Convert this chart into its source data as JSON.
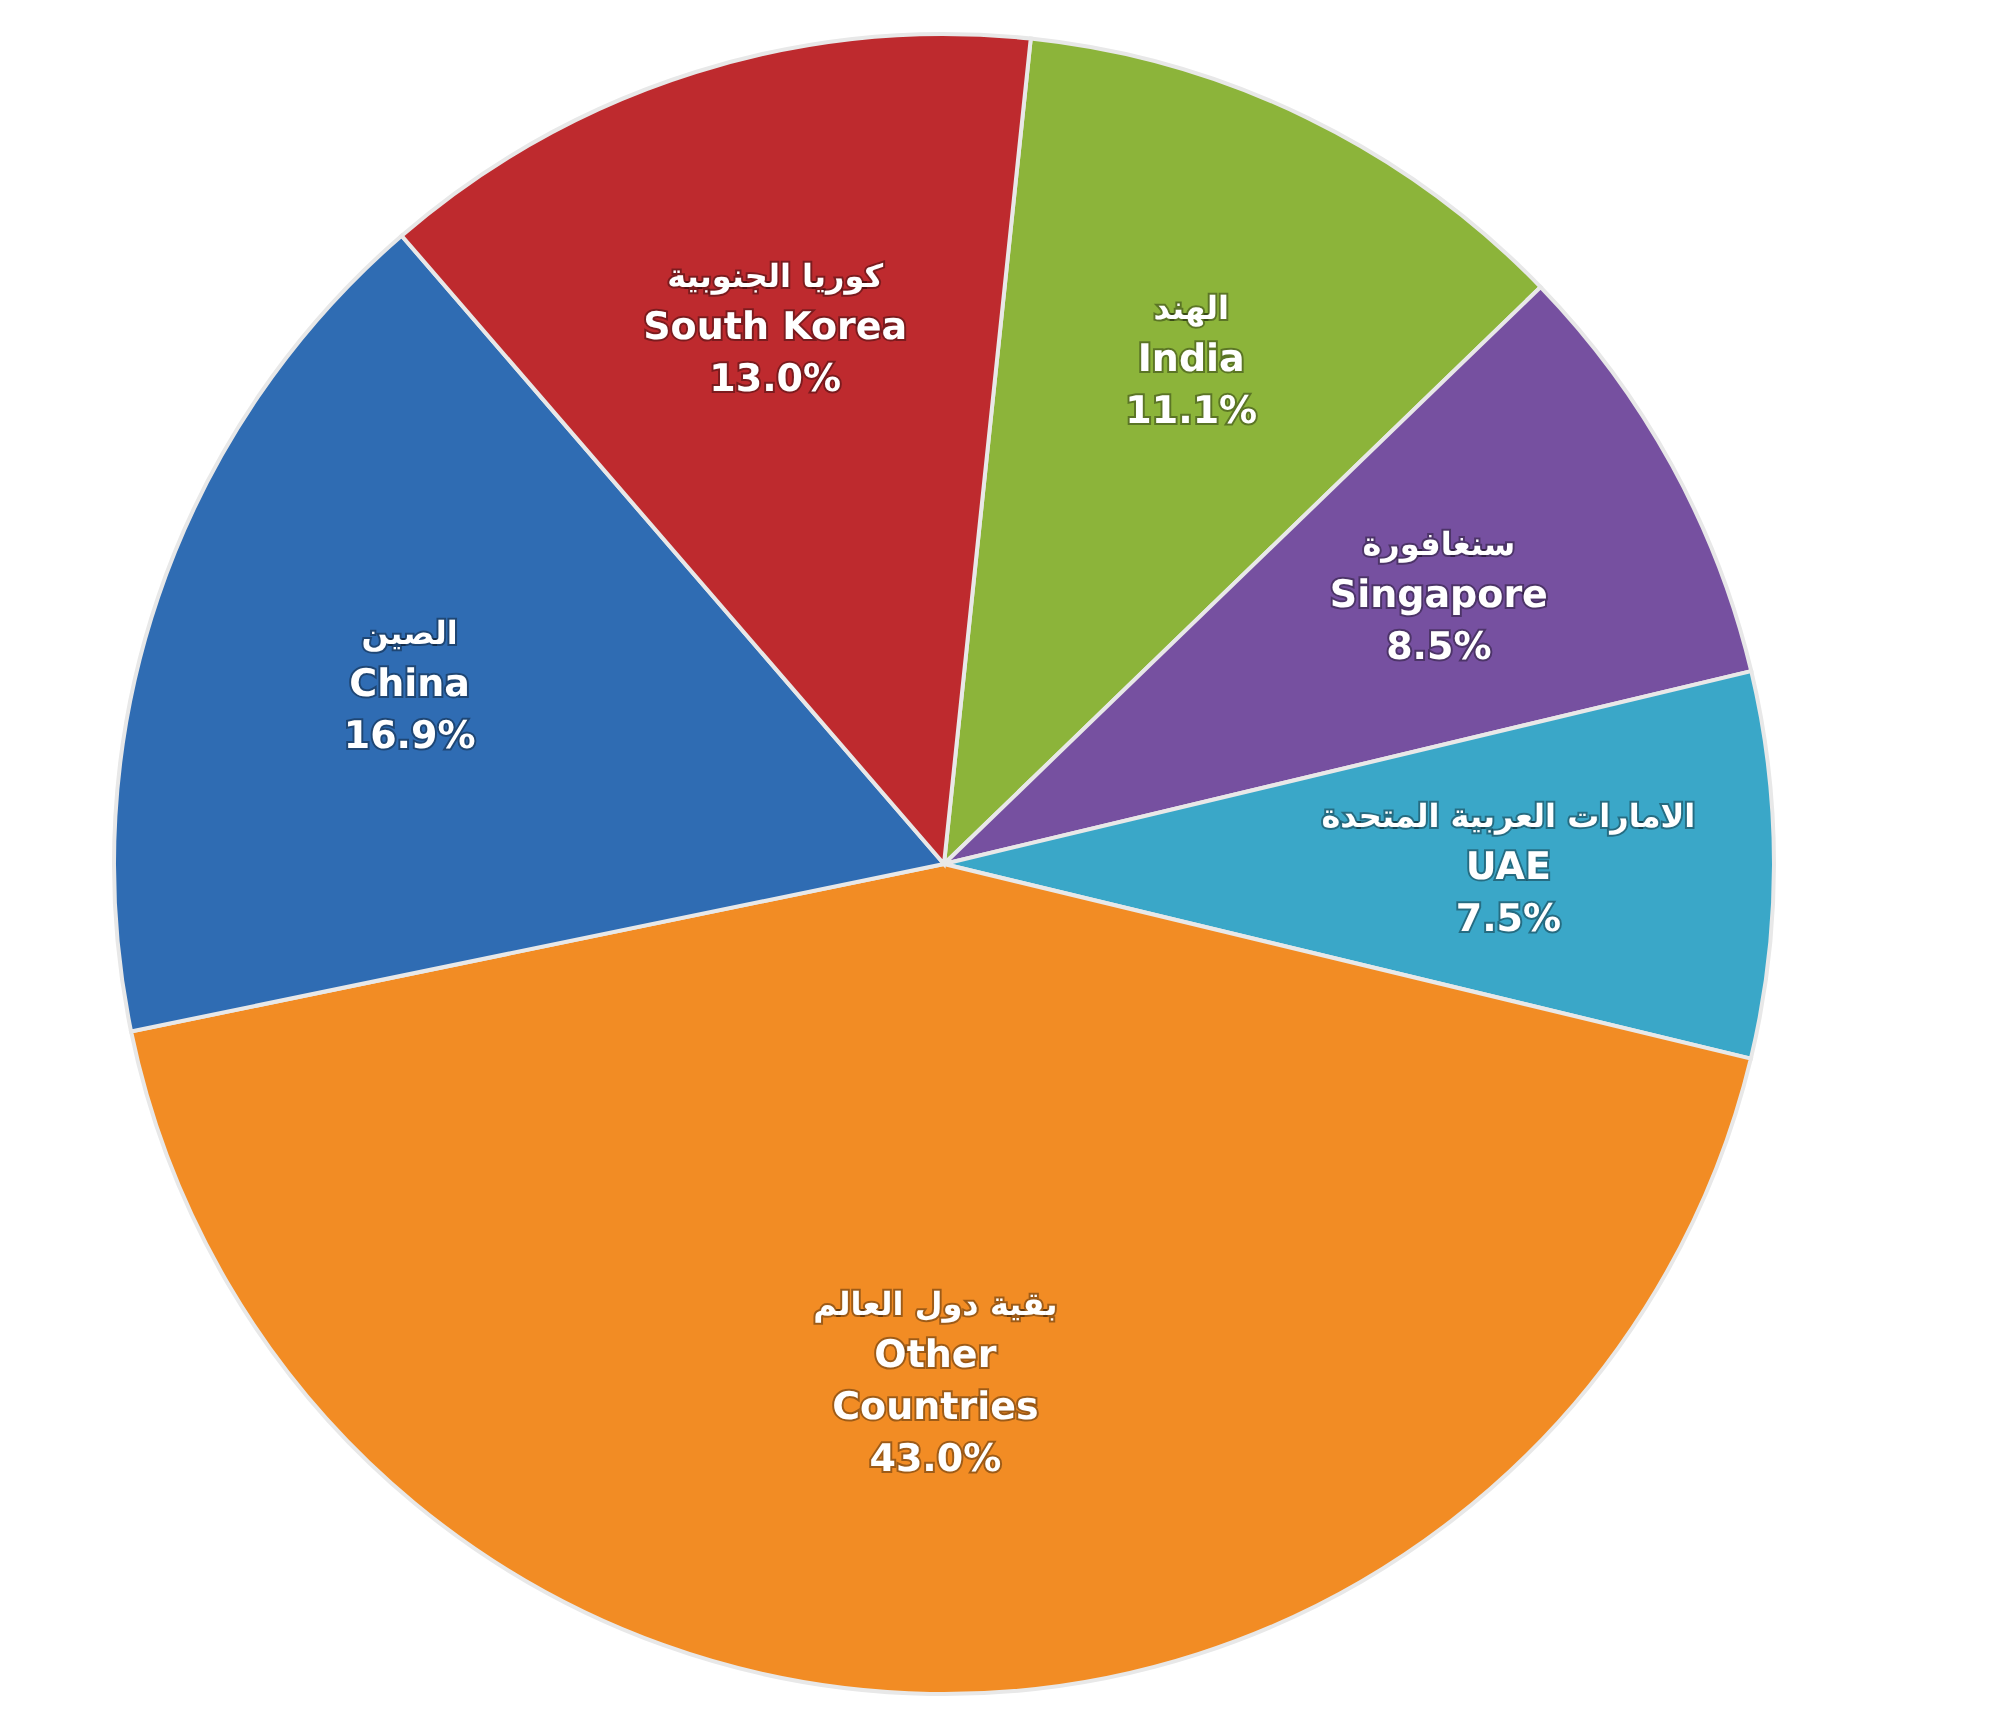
{
  "chart_data": {
    "type": "pie",
    "categories": [
      "الهند\nIndia",
      "سنغافورة\nSingapore",
      "الامارات العربية المتحدة\nUAE",
      "بقية دول العالم\nOther\nCountries",
      "الصين\nChina",
      "كوريا الجنوبية\nSouth Korea"
    ],
    "values": [
      11.1,
      8.5,
      7.5,
      43.0,
      16.9,
      13.0
    ],
    "value_labels": [
      "11.1%",
      "8.5%",
      "7.5%",
      "43.0%",
      "16.9%",
      "13.0%"
    ],
    "colors": [
      "#8cb43a",
      "#7650a0",
      "#3aa7c8",
      "#f28c24",
      "#2f6cb3",
      "#be2a2e"
    ]
  }
}
